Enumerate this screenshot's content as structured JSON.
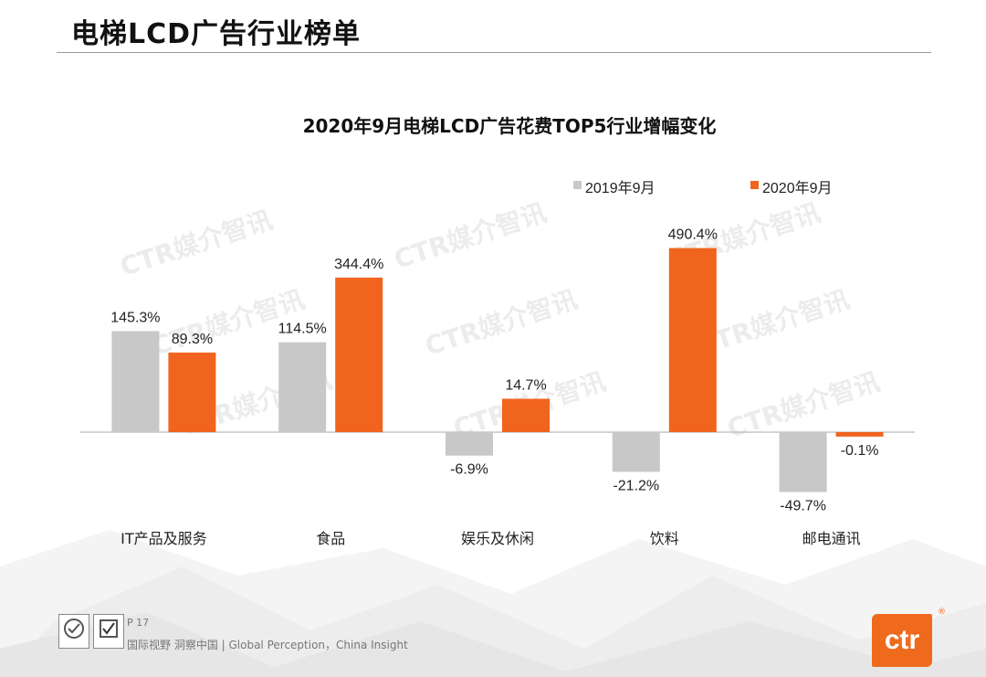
{
  "page": {
    "title": "电梯LCD广告行业榜单",
    "page_number": "P 17",
    "footer_text": "国际视野 洞察中国 | Global Perception，China Insight",
    "logo_text": "ctr",
    "logo_reg": "®",
    "watermark": "CTR媒介智讯"
  },
  "colors": {
    "series_2019": "#c8c8c8",
    "series_2020": "#f0641e",
    "brand": "#ef6a1d"
  },
  "chart_data": {
    "type": "bar",
    "title": "2020年9月电梯LCD广告花费TOP5行业增幅变化",
    "categories": [
      "IT产品及服务",
      "食品",
      "娱乐及休闲",
      "饮料",
      "邮电通讯"
    ],
    "series": [
      {
        "name": "2019年9月",
        "values": [
          145.3,
          114.5,
          -6.9,
          -21.2,
          -49.7
        ],
        "labels": [
          "145.3%",
          "114.5%",
          "-6.9%",
          "-21.2%",
          "-49.7%"
        ]
      },
      {
        "name": "2020年9月",
        "values": [
          89.3,
          344.4,
          14.7,
          490.4,
          -0.1
        ],
        "labels": [
          "89.3%",
          "344.4%",
          "14.7%",
          "490.4%",
          "-0.1%"
        ]
      }
    ],
    "legend_position": "top-right",
    "grid": false
  }
}
